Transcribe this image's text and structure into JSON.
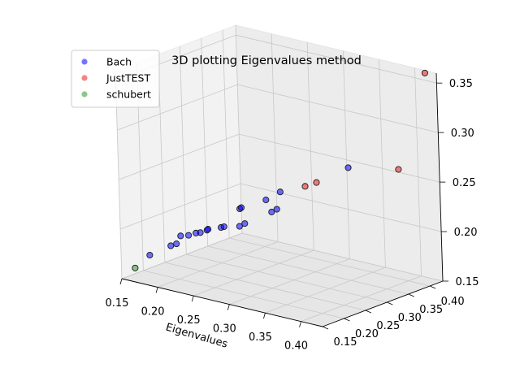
{
  "chart_data": {
    "type": "scatter",
    "title": "3D plotting Eigenvalues method",
    "xlabel": "Eigenvalues",
    "ylabel": "",
    "zlabel": "",
    "xlim": [
      0.15,
      0.43
    ],
    "ylim": [
      0.15,
      0.43
    ],
    "zlim": [
      0.15,
      0.36
    ],
    "x_ticks": [
      "0.15",
      "0.20",
      "0.25",
      "0.30",
      "0.35",
      "0.40"
    ],
    "y_ticks": [
      "0.15",
      "0.20",
      "0.25",
      "0.30",
      "0.35",
      "0.40"
    ],
    "z_ticks": [
      "0.15",
      "0.20",
      "0.25",
      "0.30",
      "0.35"
    ],
    "grid": true,
    "legend": "top-left",
    "series": [
      {
        "name": "Bach",
        "color": "#0000ff",
        "points": [
          [
            0.175,
            0.175,
            0.174
          ],
          [
            0.208,
            0.17,
            0.19
          ],
          [
            0.213,
            0.175,
            0.192
          ],
          [
            0.21,
            0.19,
            0.197
          ],
          [
            0.22,
            0.192,
            0.199
          ],
          [
            0.228,
            0.196,
            0.202
          ],
          [
            0.233,
            0.198,
            0.203
          ],
          [
            0.24,
            0.202,
            0.206
          ],
          [
            0.241,
            0.203,
            0.207
          ],
          [
            0.255,
            0.21,
            0.21
          ],
          [
            0.258,
            0.212,
            0.211
          ],
          [
            0.275,
            0.22,
            0.213
          ],
          [
            0.28,
            0.224,
            0.216
          ],
          [
            0.265,
            0.238,
            0.226
          ],
          [
            0.266,
            0.24,
            0.227
          ],
          [
            0.295,
            0.262,
            0.224
          ],
          [
            0.3,
            0.266,
            0.227
          ],
          [
            0.29,
            0.258,
            0.236
          ],
          [
            0.3,
            0.275,
            0.243
          ],
          [
            0.36,
            0.335,
            0.268
          ]
        ]
      },
      {
        "name": "JustTEST",
        "color": "#e8211c",
        "points": [
          [
            0.32,
            0.3,
            0.248
          ],
          [
            0.33,
            0.31,
            0.252
          ],
          [
            0.4,
            0.385,
            0.265
          ],
          [
            0.42,
            0.42,
            0.36
          ]
        ]
      },
      {
        "name": "schubert",
        "color": "#2e9a2e",
        "points": [
          [
            0.16,
            0.165,
            0.16
          ]
        ]
      }
    ]
  }
}
